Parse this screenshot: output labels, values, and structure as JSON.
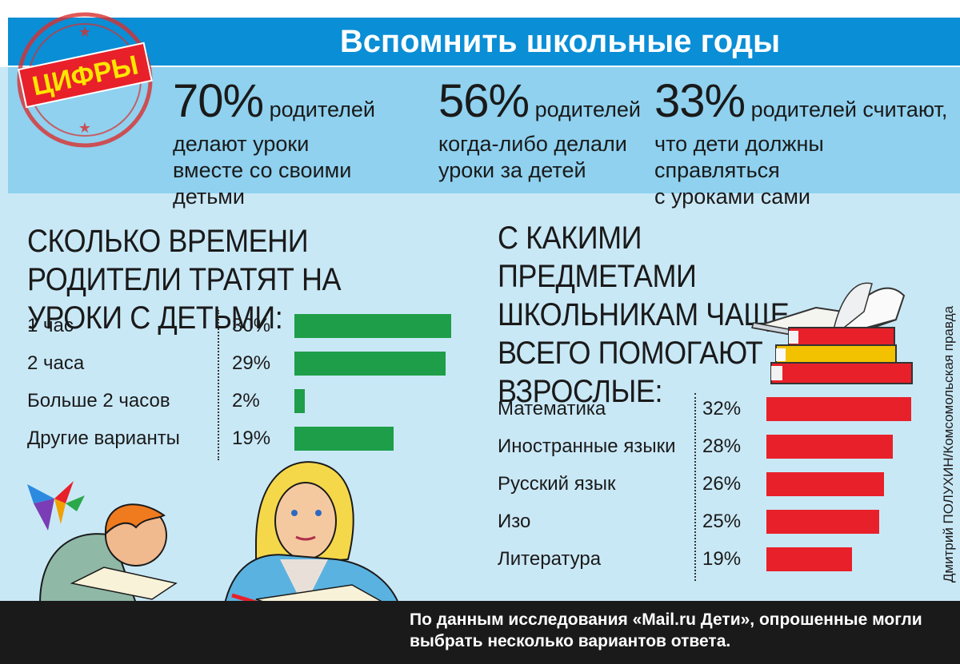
{
  "title": "Вспомнить школьные годы",
  "stamp_text": "ЦИФРЫ",
  "stats": [
    {
      "value": "70%",
      "first_line": "родителей",
      "rest": [
        "делают уроки",
        "вместе со своими детьми"
      ]
    },
    {
      "value": "56%",
      "first_line": "родителей",
      "rest": [
        "когда-либо делали",
        "уроки за детей"
      ]
    },
    {
      "value": "33%",
      "first_line": "родителей считают,",
      "rest": [
        "что дети должны справляться",
        "с уроками сами"
      ]
    }
  ],
  "chart_data": [
    {
      "type": "bar",
      "orientation": "horizontal",
      "title": "Сколько времени родители тратят на уроки с детьми:",
      "categories": [
        "1 час",
        "2 часа",
        "Больше 2 часов",
        "Другие варианты"
      ],
      "values": [
        30,
        29,
        2,
        19
      ],
      "value_labels": [
        "30%",
        "29%",
        "2%",
        "19%"
      ],
      "unit": "%",
      "color": "#1e9e48"
    },
    {
      "type": "bar",
      "orientation": "horizontal",
      "title": "С какими предметами школьникам чаще всего помогают взрослые:",
      "categories": [
        "Математика",
        "Иностранные языки",
        "Русский язык",
        "Изо",
        "Литература"
      ],
      "values": [
        32,
        28,
        26,
        25,
        19
      ],
      "value_labels": [
        "32%",
        "28%",
        "26%",
        "25%",
        "19%"
      ],
      "unit": "%",
      "color": "#e8202a"
    }
  ],
  "credit": "Дмитрий ПОЛУХИН/Комсомольская правда",
  "footer": "По данным исследования «Mail.ru Дети», опрошенные могли выбрать несколько вариантов ответа."
}
